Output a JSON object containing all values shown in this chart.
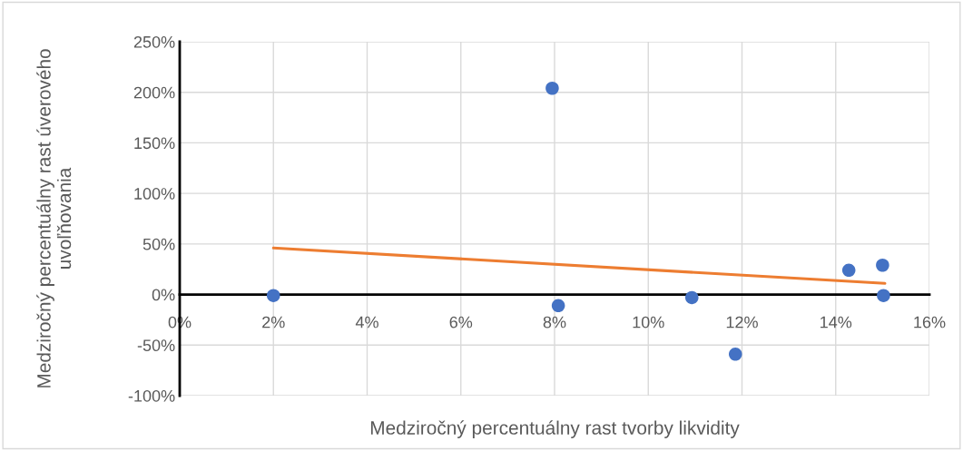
{
  "chart_data": {
    "type": "scatter",
    "xlabel": "Medziročný percentuálny rast tvorby likvidity",
    "ylabel": "Medziročný percentuálny rast úverového uvoľňovania",
    "series": [
      {
        "color": "#4472c4",
        "marker": "circle",
        "x": [
          2.0,
          7.95,
          8.08,
          10.93,
          11.86,
          14.28,
          15.0,
          15.02
        ],
        "values": [
          -1,
          204,
          -11,
          -3,
          -59,
          24,
          29,
          -1
        ]
      },
      {
        "type": "line",
        "color": "#ed7d31",
        "x": [
          2.0,
          15.05
        ],
        "values": [
          46,
          11
        ]
      }
    ],
    "grid": true,
    "legend": false,
    "xlim": [
      0,
      16
    ],
    "xticks": [
      {
        "value": 0,
        "label": "0%"
      },
      {
        "value": 2,
        "label": "2%"
      },
      {
        "value": 4,
        "label": "4%"
      },
      {
        "value": 6,
        "label": "6%"
      },
      {
        "value": 8,
        "label": "8%"
      },
      {
        "value": 10,
        "label": "10%"
      },
      {
        "value": 12,
        "label": "12%"
      },
      {
        "value": 14,
        "label": "14%"
      },
      {
        "value": 16,
        "label": "16%"
      }
    ],
    "ylim": [
      -100,
      250
    ],
    "yticks": [
      {
        "value": -100,
        "label": "-100%"
      },
      {
        "value": -50,
        "label": "-50%"
      },
      {
        "value": 0,
        "label": "0%"
      },
      {
        "value": 50,
        "label": "50%"
      },
      {
        "value": 100,
        "label": "100%"
      },
      {
        "value": 150,
        "label": "150%"
      },
      {
        "value": 200,
        "label": "200%"
      },
      {
        "value": 250,
        "label": "250%"
      }
    ]
  }
}
